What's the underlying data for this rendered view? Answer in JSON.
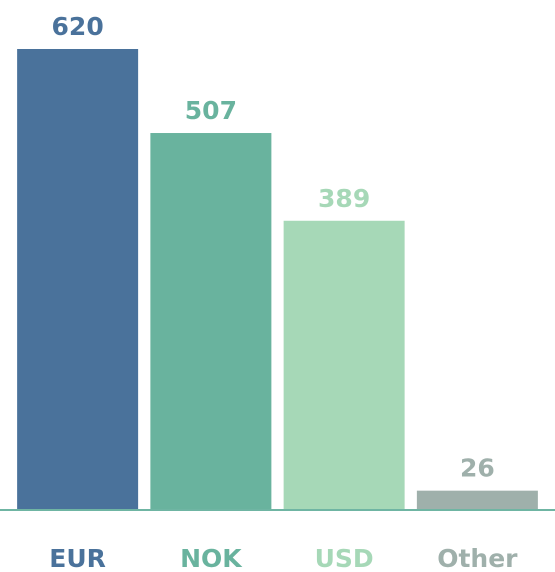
{
  "chart_data": {
    "type": "bar",
    "categories": [
      "EUR",
      "NOK",
      "USD",
      "Other"
    ],
    "values": [
      620,
      507,
      389,
      26
    ],
    "colors": [
      "#4a729b",
      "#69b39e",
      "#a6d8b7",
      "#9fb0ab"
    ]
  }
}
